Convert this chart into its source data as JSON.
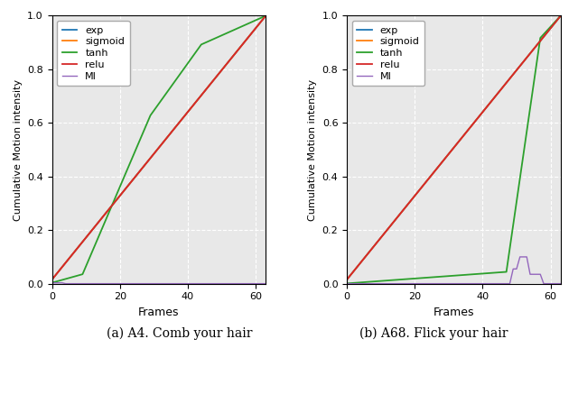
{
  "fig_width": 6.4,
  "fig_height": 4.37,
  "subplot_a_caption": "(a) A4. Comb your hair",
  "subplot_b_caption": "(b) A68. Flick your hair",
  "xlabel": "Frames",
  "ylabel": "Cumulative Motion intensity",
  "xlim": [
    0,
    63
  ],
  "ylim": [
    0.0,
    1.0
  ],
  "xticks": [
    0,
    20,
    40,
    60
  ],
  "yticks": [
    0.0,
    0.2,
    0.4,
    0.6,
    0.8,
    1.0
  ],
  "legend_labels": [
    "exp",
    "sigmoid",
    "tanh",
    "relu",
    "MI"
  ],
  "line_colors": [
    "#1f77b4",
    "#ff7f0e",
    "#2ca02c",
    "#d62728",
    "#9467bd"
  ],
  "background_color": "#e8e8e8",
  "n_frames": 64,
  "grid_color": "#ffffff",
  "grid_linestyle": "--",
  "grid_linewidth": 0.8,
  "caption_fontsize": 10,
  "ylabel_fontsize": 8,
  "xlabel_fontsize": 9,
  "tick_fontsize": 8,
  "legend_fontsize": 8
}
